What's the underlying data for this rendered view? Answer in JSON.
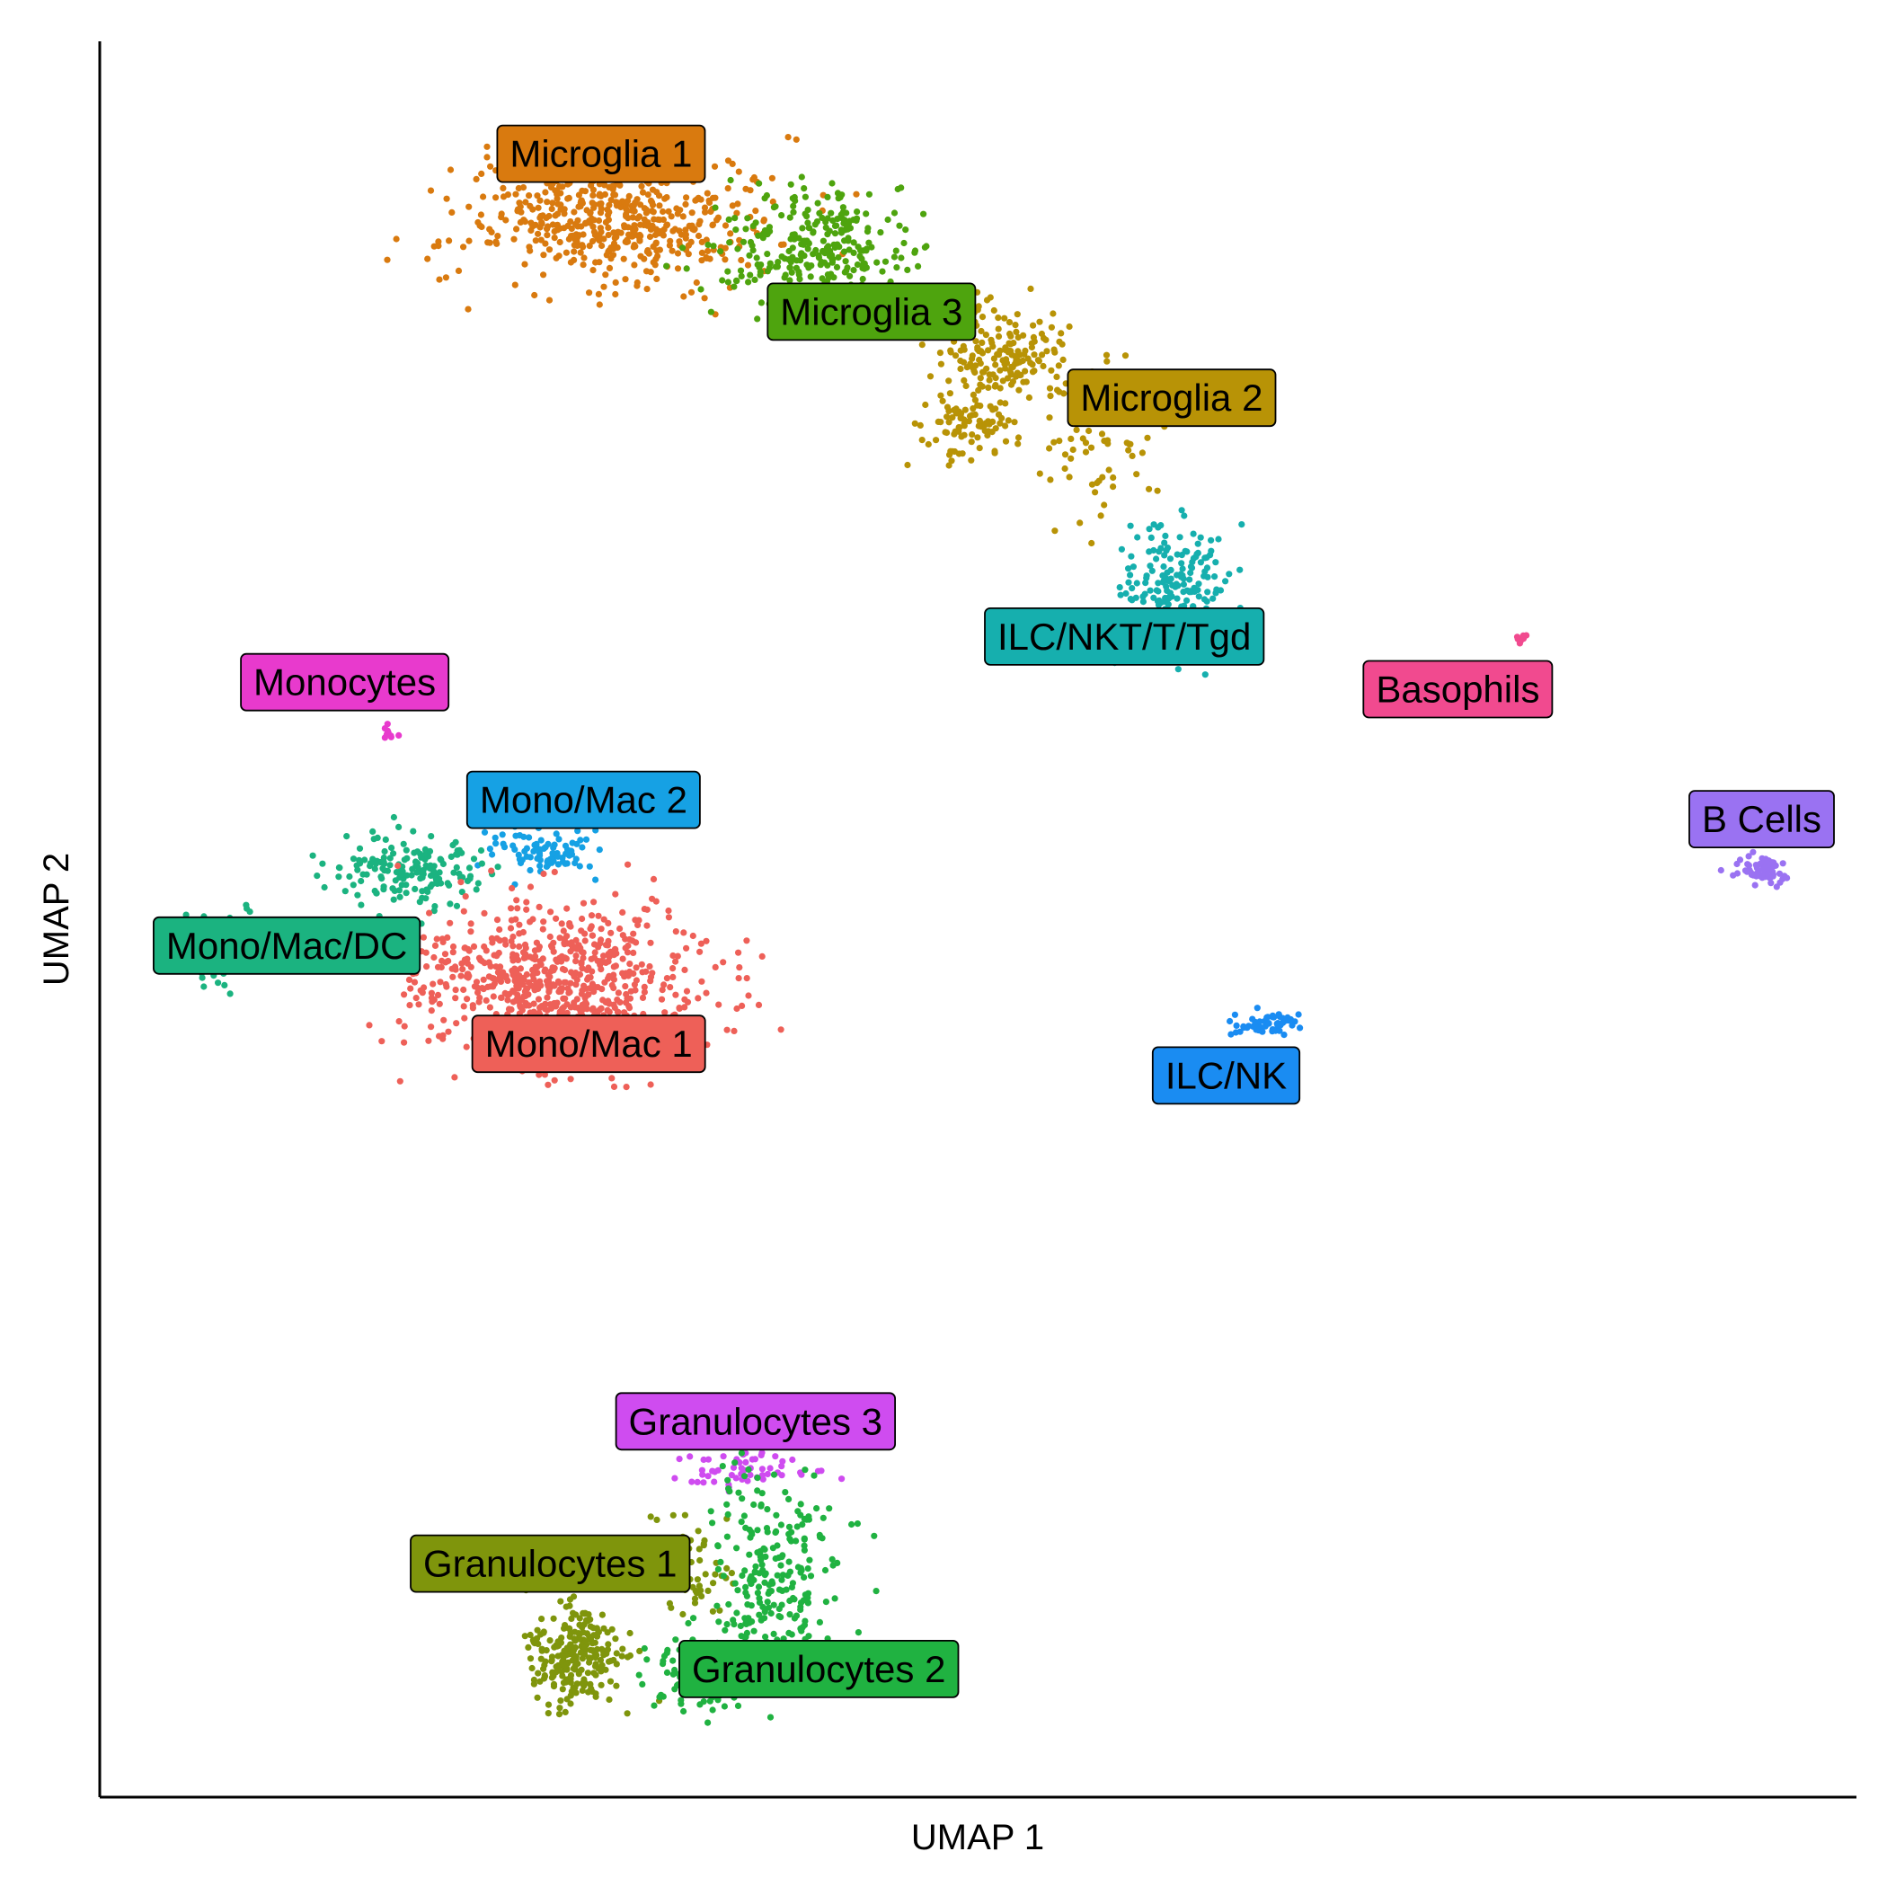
{
  "chart_data": {
    "type": "scatter",
    "title": "",
    "xlabel": "UMAP 1",
    "ylabel": "UMAP 2",
    "xlim": [
      0,
      100
    ],
    "ylim": [
      0,
      100
    ],
    "grid": false,
    "legend": "none (clusters labelled directly on the plot)",
    "note_points": "Point clouds approximate the cluster shapes; centers/spreads are in the (unlabelled) UMAP units of the axes.",
    "clusters": [
      {
        "name": "Microglia 1",
        "color": "#D97A0F",
        "n": 520,
        "blobs": [
          {
            "cx": 29.5,
            "cy": 89.7,
            "sx": 5.8,
            "sy": 2.2,
            "w": 1
          }
        ],
        "label": {
          "x": 28.5,
          "y": 93.6
        }
      },
      {
        "name": "Microglia 3",
        "color": "#4EA40E",
        "n": 300,
        "blobs": [
          {
            "cx": 41.0,
            "cy": 88.2,
            "sx": 3.6,
            "sy": 2.4,
            "w": 1
          }
        ],
        "label": {
          "x": 43.9,
          "y": 84.6
        }
      },
      {
        "name": "Microglia 2",
        "color": "#B89306",
        "n": 330,
        "blobs": [
          {
            "cx": 51.5,
            "cy": 82.2,
            "sx": 2.6,
            "sy": 1.6,
            "w": 0.5
          },
          {
            "cx": 49.6,
            "cy": 78.2,
            "sx": 2.0,
            "sy": 1.4,
            "w": 0.3
          },
          {
            "cx": 56.5,
            "cy": 76.8,
            "sx": 2.6,
            "sy": 3.0,
            "w": 0.2
          }
        ],
        "label": {
          "x": 61.0,
          "y": 79.7
        }
      },
      {
        "name": "ILC/NKT/T/Tgd",
        "color": "#16AFAE",
        "n": 190,
        "blobs": [
          {
            "cx": 61.4,
            "cy": 68.9,
            "sx": 2.0,
            "sy": 2.6,
            "w": 1
          }
        ],
        "label": {
          "x": 58.3,
          "y": 66.1
        }
      },
      {
        "name": "Basophils",
        "color": "#F14A8F",
        "n": 8,
        "blobs": [
          {
            "cx": 80.9,
            "cy": 65.9,
            "sx": 0.3,
            "sy": 0.2,
            "w": 1
          }
        ],
        "label": {
          "x": 77.3,
          "y": 63.1
        }
      },
      {
        "name": "B Cells",
        "color": "#9A72F2",
        "n": 60,
        "blobs": [
          {
            "cx": 94.6,
            "cy": 52.9,
            "sx": 1.1,
            "sy": 0.6,
            "w": 1
          }
        ],
        "label": {
          "x": 94.6,
          "y": 55.7
        }
      },
      {
        "name": "ILC/NK",
        "color": "#1A8CF2",
        "n": 55,
        "blobs": [
          {
            "cx": 66.5,
            "cy": 44.0,
            "sx": 1.2,
            "sy": 0.5,
            "w": 1
          }
        ],
        "label": {
          "x": 64.1,
          "y": 41.1
        }
      },
      {
        "name": "Monocytes",
        "color": "#E83ACD",
        "n": 10,
        "blobs": [
          {
            "cx": 16.5,
            "cy": 60.6,
            "sx": 0.3,
            "sy": 0.3,
            "w": 1
          }
        ],
        "label": {
          "x": 13.9,
          "y": 63.5
        }
      },
      {
        "name": "Mono/Mac 2",
        "color": "#16A1E4",
        "n": 85,
        "blobs": [
          {
            "cx": 25.5,
            "cy": 53.8,
            "sx": 2.0,
            "sy": 1.0,
            "w": 1
          }
        ],
        "label": {
          "x": 27.5,
          "y": 56.8
        }
      },
      {
        "name": "Mono/Mac/DC",
        "color": "#1BB380",
        "n": 200,
        "blobs": [
          {
            "cx": 17.7,
            "cy": 52.8,
            "sx": 3.0,
            "sy": 1.4,
            "w": 0.85
          },
          {
            "cx": 7.0,
            "cy": 48.5,
            "sx": 1.5,
            "sy": 1.8,
            "w": 0.15
          }
        ],
        "label": {
          "x": 10.6,
          "y": 48.5
        }
      },
      {
        "name": "Mono/Mac 1",
        "color": "#EE6058",
        "n": 720,
        "blobs": [
          {
            "cx": 26.0,
            "cy": 46.5,
            "sx": 5.4,
            "sy": 3.0,
            "w": 1
          }
        ],
        "label": {
          "x": 27.8,
          "y": 42.9
        }
      },
      {
        "name": "Granulocytes 3",
        "color": "#CF4CF0",
        "n": 55,
        "blobs": [
          {
            "cx": 37.0,
            "cy": 18.6,
            "sx": 2.6,
            "sy": 0.7,
            "w": 1
          }
        ],
        "label": {
          "x": 37.3,
          "y": 21.4
        }
      },
      {
        "name": "Granulocytes 1",
        "color": "#7F950C",
        "n": 300,
        "blobs": [
          {
            "cx": 27.2,
            "cy": 8.1,
            "sx": 1.8,
            "sy": 1.9,
            "w": 0.8
          },
          {
            "cx": 33.5,
            "cy": 13.0,
            "sx": 2.0,
            "sy": 2.0,
            "w": 0.2
          }
        ],
        "label": {
          "x": 25.6,
          "y": 13.3
        }
      },
      {
        "name": "Granulocytes 2",
        "color": "#20B241",
        "n": 340,
        "blobs": [
          {
            "cx": 38.5,
            "cy": 12.5,
            "sx": 2.5,
            "sy": 4.0,
            "w": 0.7
          },
          {
            "cx": 34.5,
            "cy": 7.0,
            "sx": 2.4,
            "sy": 1.6,
            "w": 0.3
          }
        ],
        "label": {
          "x": 40.9,
          "y": 7.3
        }
      }
    ]
  }
}
